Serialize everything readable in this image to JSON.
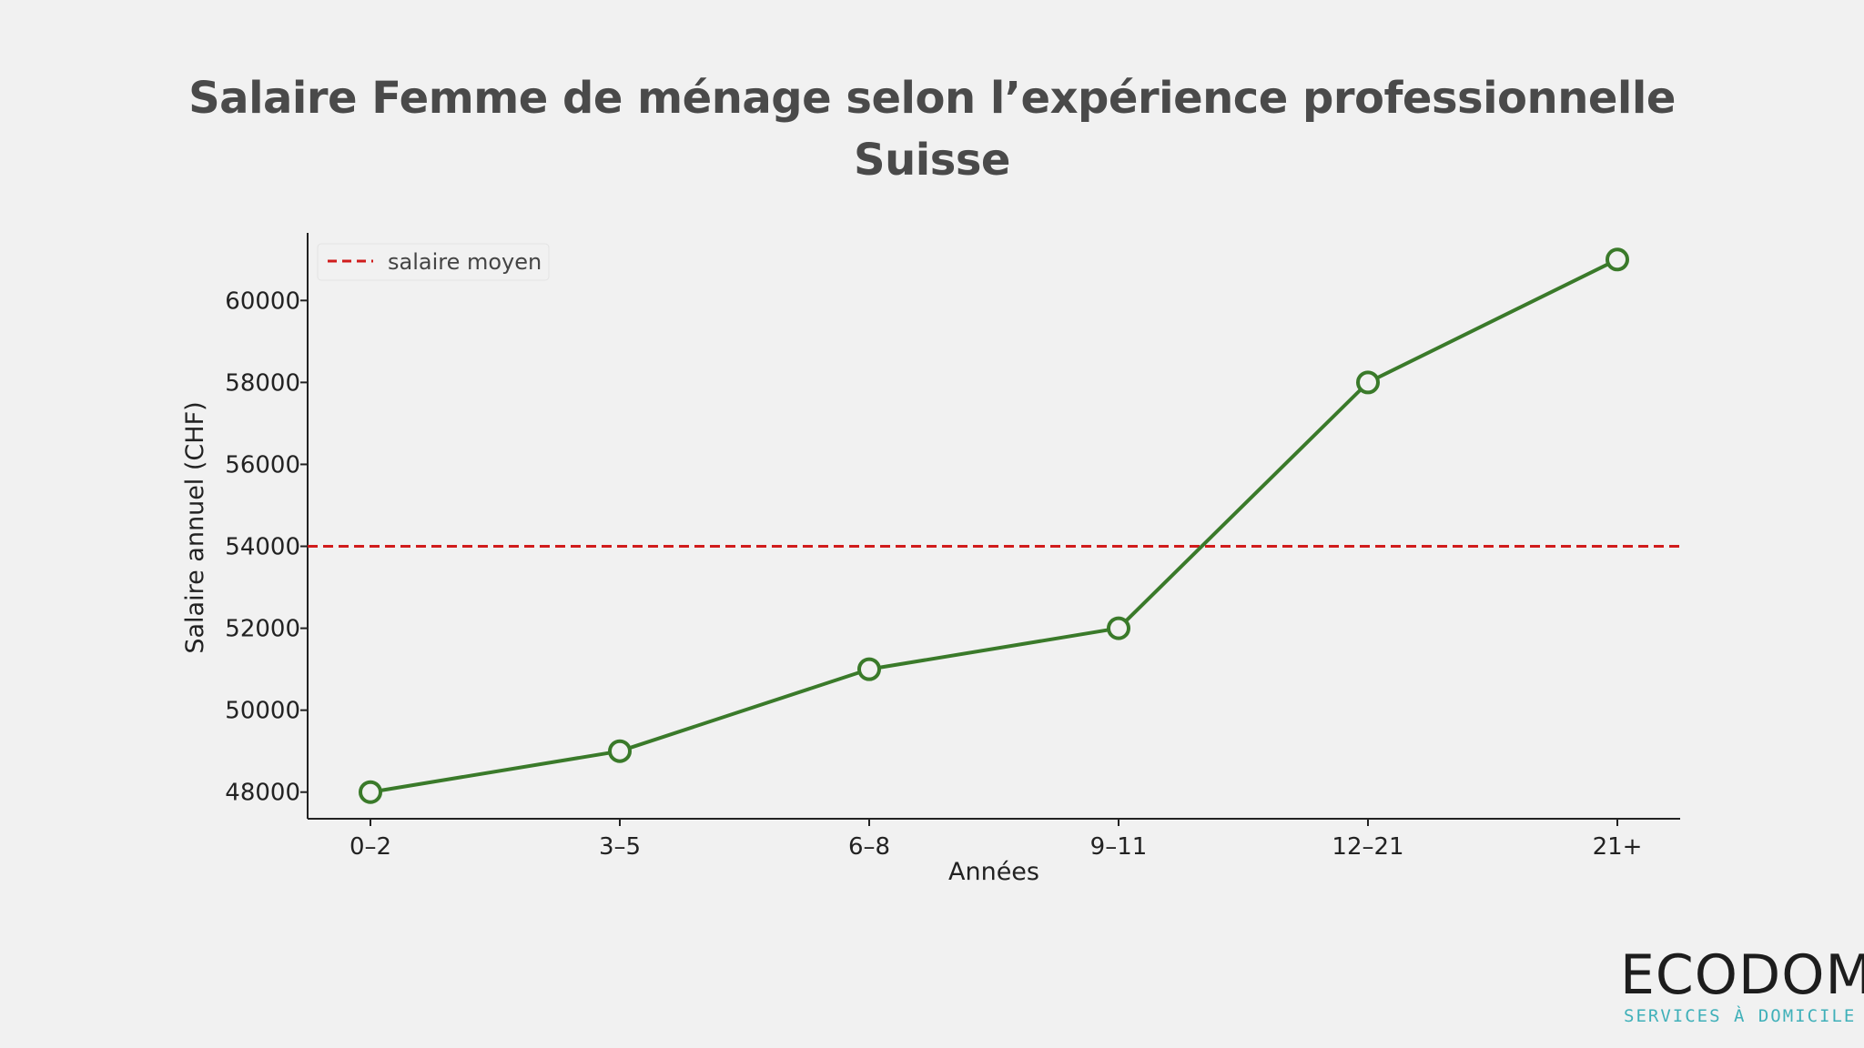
{
  "title_line1": "Salaire Femme de ménage selon l’expérience professionnelle",
  "title_line2": "Suisse",
  "chart_data": {
    "type": "line",
    "categories": [
      "0–2",
      "3–5",
      "6–8",
      "9–11",
      "12–21",
      "21+"
    ],
    "series": [
      {
        "values": [
          48000,
          49000,
          51000,
          52000,
          58000,
          61000
        ],
        "color": "#3a7a2a"
      }
    ],
    "reference_line": {
      "name": "salaire moyen",
      "value": 54000,
      "color": "#d01c1c",
      "style": "dashed"
    },
    "xlabel": "Années",
    "ylabel": "Salaire annuel (CHF)",
    "yticks": [
      48000,
      50000,
      52000,
      54000,
      56000,
      58000,
      60000
    ],
    "ylim": [
      47350,
      61650
    ],
    "grid": false,
    "legend_position": "top-left"
  },
  "logo": {
    "word": "ECODOM",
    "subtitle": "SERVICES À DOMICILE",
    "color_dark": "#1d1d1d",
    "color_accent": "#3fb0b9"
  }
}
